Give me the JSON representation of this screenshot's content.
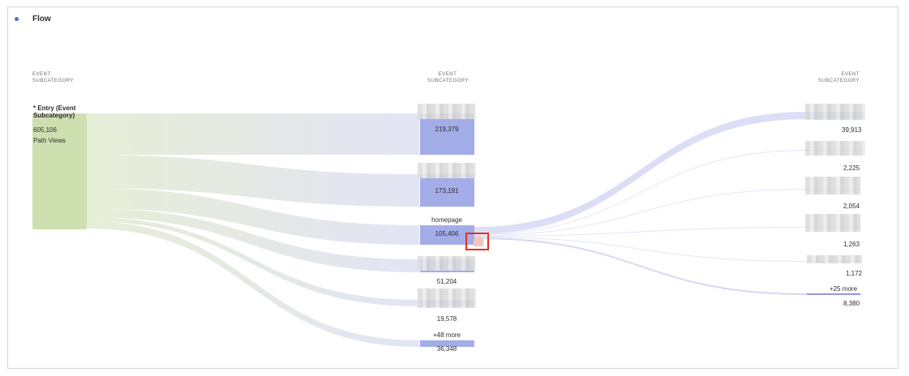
{
  "panel": {
    "title": "Flow"
  },
  "columns": [
    {
      "label_line1": "EVENT",
      "label_line2": "SUBCATEGORY"
    },
    {
      "label_line1": "EVENT",
      "label_line2": "SUBCATEGORY"
    },
    {
      "label_line1": "EVENT",
      "label_line2": "SUBCATEGORY"
    }
  ],
  "entry": {
    "title": "* Entry (Event Subcategory)",
    "value": "605,106",
    "sub": "Path Views"
  },
  "middle_nodes": [
    {
      "label": "",
      "value": "219,379"
    },
    {
      "label": "",
      "value": "173,191"
    },
    {
      "label": "homepage",
      "value": "105,406"
    },
    {
      "label": "",
      "value": "51,204"
    },
    {
      "label": "",
      "value": "19,578"
    },
    {
      "label": "+48 more",
      "value": "36,348"
    }
  ],
  "right_nodes": [
    {
      "label": "",
      "value": "39,913"
    },
    {
      "label": "",
      "value": "2,225"
    },
    {
      "label": "",
      "value": "2,054"
    },
    {
      "label": "",
      "value": "1,263"
    },
    {
      "label": "",
      "value": "1,172"
    },
    {
      "label": "+25 more",
      "value": "8,380"
    }
  ],
  "colors": {
    "entry": "#cfe0b0",
    "node": "#a3ade8",
    "flow": "#dfe1f3",
    "accent": "#5a6cd6",
    "highlight": "#e5311f"
  }
}
